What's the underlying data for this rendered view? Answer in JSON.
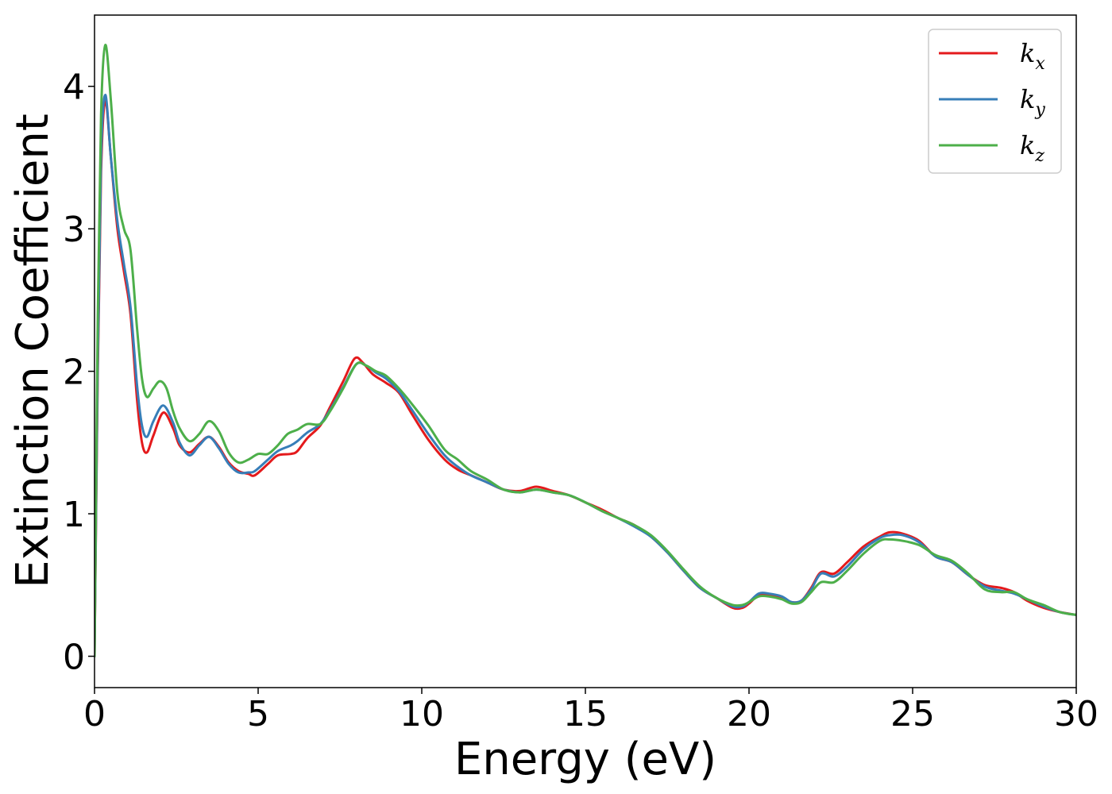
{
  "chart_data": {
    "type": "line",
    "title": "",
    "xlabel": "Energy (eV)",
    "ylabel": "Extinction Coefficient",
    "xlim": [
      0,
      30
    ],
    "ylim": [
      -0.22,
      4.5
    ],
    "xticks": [
      0,
      5,
      10,
      15,
      20,
      25,
      30
    ],
    "xtick_labels": [
      "0",
      "5",
      "10",
      "15",
      "20",
      "25",
      "30"
    ],
    "yticks": [
      0,
      1,
      2,
      3,
      4
    ],
    "ytick_labels": [
      "0",
      "1",
      "2",
      "3",
      "4"
    ],
    "grid": false,
    "legend": {
      "position": "top-right"
    },
    "series": [
      {
        "name": "k",
        "sub": "x",
        "color": "#e41a1c",
        "points": [
          [
            0,
            0
          ],
          [
            0.1,
            2.0
          ],
          [
            0.2,
            3.4
          ],
          [
            0.33,
            3.9
          ],
          [
            0.5,
            3.5
          ],
          [
            0.7,
            3.0
          ],
          [
            0.9,
            2.7
          ],
          [
            1.1,
            2.4
          ],
          [
            1.3,
            1.8
          ],
          [
            1.45,
            1.5
          ],
          [
            1.6,
            1.43
          ],
          [
            1.8,
            1.55
          ],
          [
            2.1,
            1.71
          ],
          [
            2.4,
            1.6
          ],
          [
            2.6,
            1.48
          ],
          [
            2.9,
            1.43
          ],
          [
            3.2,
            1.49
          ],
          [
            3.5,
            1.54
          ],
          [
            3.8,
            1.47
          ],
          [
            4.1,
            1.36
          ],
          [
            4.4,
            1.3
          ],
          [
            4.7,
            1.28
          ],
          [
            4.9,
            1.27
          ],
          [
            5.3,
            1.35
          ],
          [
            5.6,
            1.41
          ],
          [
            6.0,
            1.42
          ],
          [
            6.2,
            1.44
          ],
          [
            6.5,
            1.53
          ],
          [
            6.9,
            1.62
          ],
          [
            7.2,
            1.75
          ],
          [
            7.6,
            1.93
          ],
          [
            7.95,
            2.09
          ],
          [
            8.2,
            2.06
          ],
          [
            8.5,
            1.98
          ],
          [
            8.9,
            1.92
          ],
          [
            9.3,
            1.85
          ],
          [
            9.7,
            1.7
          ],
          [
            10.2,
            1.52
          ],
          [
            10.7,
            1.38
          ],
          [
            11.1,
            1.31
          ],
          [
            11.5,
            1.27
          ],
          [
            12.0,
            1.22
          ],
          [
            12.5,
            1.17
          ],
          [
            13.0,
            1.16
          ],
          [
            13.5,
            1.19
          ],
          [
            14.0,
            1.16
          ],
          [
            14.5,
            1.13
          ],
          [
            15.0,
            1.08
          ],
          [
            15.5,
            1.03
          ],
          [
            16.0,
            0.97
          ],
          [
            16.5,
            0.92
          ],
          [
            17.0,
            0.84
          ],
          [
            17.5,
            0.73
          ],
          [
            18.0,
            0.6
          ],
          [
            18.5,
            0.48
          ],
          [
            19.0,
            0.41
          ],
          [
            19.5,
            0.34
          ],
          [
            19.8,
            0.34
          ],
          [
            20.0,
            0.37
          ],
          [
            20.3,
            0.43
          ],
          [
            20.6,
            0.43
          ],
          [
            21.0,
            0.41
          ],
          [
            21.3,
            0.38
          ],
          [
            21.6,
            0.39
          ],
          [
            21.9,
            0.48
          ],
          [
            22.2,
            0.59
          ],
          [
            22.6,
            0.58
          ],
          [
            23.0,
            0.66
          ],
          [
            23.5,
            0.77
          ],
          [
            24.0,
            0.84
          ],
          [
            24.3,
            0.87
          ],
          [
            24.7,
            0.86
          ],
          [
            25.2,
            0.81
          ],
          [
            25.7,
            0.7
          ],
          [
            26.2,
            0.66
          ],
          [
            26.7,
            0.57
          ],
          [
            27.2,
            0.5
          ],
          [
            27.7,
            0.48
          ],
          [
            28.1,
            0.45
          ],
          [
            28.5,
            0.39
          ],
          [
            29.0,
            0.34
          ],
          [
            29.5,
            0.31
          ],
          [
            30.0,
            0.29
          ]
        ]
      },
      {
        "name": "k",
        "sub": "y",
        "color": "#377eb8",
        "points": [
          [
            0,
            0
          ],
          [
            0.1,
            2.1
          ],
          [
            0.2,
            3.5
          ],
          [
            0.33,
            3.94
          ],
          [
            0.5,
            3.5
          ],
          [
            0.7,
            3.05
          ],
          [
            0.9,
            2.75
          ],
          [
            1.1,
            2.45
          ],
          [
            1.3,
            1.9
          ],
          [
            1.45,
            1.62
          ],
          [
            1.6,
            1.54
          ],
          [
            1.8,
            1.65
          ],
          [
            2.1,
            1.76
          ],
          [
            2.4,
            1.64
          ],
          [
            2.6,
            1.5
          ],
          [
            2.9,
            1.41
          ],
          [
            3.2,
            1.48
          ],
          [
            3.5,
            1.54
          ],
          [
            3.8,
            1.46
          ],
          [
            4.1,
            1.35
          ],
          [
            4.4,
            1.29
          ],
          [
            4.7,
            1.29
          ],
          [
            4.9,
            1.3
          ],
          [
            5.3,
            1.38
          ],
          [
            5.6,
            1.44
          ],
          [
            6.0,
            1.48
          ],
          [
            6.2,
            1.51
          ],
          [
            6.5,
            1.57
          ],
          [
            6.9,
            1.63
          ],
          [
            7.2,
            1.73
          ],
          [
            7.6,
            1.89
          ],
          [
            8.0,
            2.05
          ],
          [
            8.3,
            2.04
          ],
          [
            8.6,
            1.99
          ],
          [
            8.9,
            1.95
          ],
          [
            9.3,
            1.86
          ],
          [
            9.7,
            1.73
          ],
          [
            10.2,
            1.56
          ],
          [
            10.7,
            1.41
          ],
          [
            11.1,
            1.33
          ],
          [
            11.5,
            1.27
          ],
          [
            12.0,
            1.22
          ],
          [
            12.5,
            1.17
          ],
          [
            13.0,
            1.15
          ],
          [
            13.5,
            1.17
          ],
          [
            14.0,
            1.15
          ],
          [
            14.5,
            1.13
          ],
          [
            15.0,
            1.08
          ],
          [
            15.5,
            1.02
          ],
          [
            16.0,
            0.97
          ],
          [
            16.5,
            0.91
          ],
          [
            17.0,
            0.84
          ],
          [
            17.5,
            0.73
          ],
          [
            18.0,
            0.6
          ],
          [
            18.5,
            0.48
          ],
          [
            19.0,
            0.41
          ],
          [
            19.5,
            0.35
          ],
          [
            19.8,
            0.35
          ],
          [
            20.0,
            0.38
          ],
          [
            20.3,
            0.44
          ],
          [
            20.6,
            0.44
          ],
          [
            21.0,
            0.42
          ],
          [
            21.3,
            0.38
          ],
          [
            21.6,
            0.39
          ],
          [
            21.9,
            0.47
          ],
          [
            22.2,
            0.58
          ],
          [
            22.6,
            0.56
          ],
          [
            23.0,
            0.63
          ],
          [
            23.5,
            0.75
          ],
          [
            24.0,
            0.83
          ],
          [
            24.3,
            0.85
          ],
          [
            24.7,
            0.85
          ],
          [
            25.2,
            0.8
          ],
          [
            25.7,
            0.7
          ],
          [
            26.2,
            0.66
          ],
          [
            26.7,
            0.57
          ],
          [
            27.2,
            0.49
          ],
          [
            27.7,
            0.46
          ],
          [
            28.1,
            0.44
          ],
          [
            28.5,
            0.4
          ],
          [
            29.0,
            0.35
          ],
          [
            29.5,
            0.31
          ],
          [
            30.0,
            0.29
          ]
        ]
      },
      {
        "name": "k",
        "sub": "z",
        "color": "#4daf4a",
        "points": [
          [
            0,
            0
          ],
          [
            0.1,
            2.4
          ],
          [
            0.2,
            3.8
          ],
          [
            0.33,
            4.29
          ],
          [
            0.5,
            3.9
          ],
          [
            0.7,
            3.25
          ],
          [
            0.9,
            3.0
          ],
          [
            1.1,
            2.85
          ],
          [
            1.3,
            2.3
          ],
          [
            1.45,
            1.95
          ],
          [
            1.6,
            1.82
          ],
          [
            1.8,
            1.88
          ],
          [
            2.0,
            1.93
          ],
          [
            2.2,
            1.88
          ],
          [
            2.4,
            1.72
          ],
          [
            2.6,
            1.6
          ],
          [
            2.9,
            1.51
          ],
          [
            3.2,
            1.56
          ],
          [
            3.5,
            1.65
          ],
          [
            3.8,
            1.58
          ],
          [
            4.1,
            1.43
          ],
          [
            4.4,
            1.36
          ],
          [
            4.7,
            1.38
          ],
          [
            5.0,
            1.42
          ],
          [
            5.3,
            1.42
          ],
          [
            5.6,
            1.48
          ],
          [
            5.9,
            1.56
          ],
          [
            6.2,
            1.59
          ],
          [
            6.5,
            1.63
          ],
          [
            6.9,
            1.63
          ],
          [
            7.2,
            1.72
          ],
          [
            7.6,
            1.88
          ],
          [
            8.0,
            2.05
          ],
          [
            8.3,
            2.04
          ],
          [
            8.6,
            2.0
          ],
          [
            8.9,
            1.97
          ],
          [
            9.3,
            1.88
          ],
          [
            9.7,
            1.77
          ],
          [
            10.2,
            1.62
          ],
          [
            10.7,
            1.45
          ],
          [
            11.1,
            1.38
          ],
          [
            11.5,
            1.3
          ],
          [
            12.0,
            1.24
          ],
          [
            12.5,
            1.17
          ],
          [
            13.0,
            1.15
          ],
          [
            13.5,
            1.17
          ],
          [
            14.0,
            1.15
          ],
          [
            14.5,
            1.13
          ],
          [
            15.0,
            1.08
          ],
          [
            15.5,
            1.02
          ],
          [
            16.0,
            0.97
          ],
          [
            16.5,
            0.92
          ],
          [
            17.0,
            0.85
          ],
          [
            17.5,
            0.74
          ],
          [
            18.0,
            0.61
          ],
          [
            18.5,
            0.49
          ],
          [
            19.0,
            0.41
          ],
          [
            19.5,
            0.36
          ],
          [
            19.8,
            0.36
          ],
          [
            20.0,
            0.38
          ],
          [
            20.3,
            0.42
          ],
          [
            20.6,
            0.42
          ],
          [
            21.0,
            0.4
          ],
          [
            21.3,
            0.37
          ],
          [
            21.6,
            0.38
          ],
          [
            21.9,
            0.45
          ],
          [
            22.2,
            0.52
          ],
          [
            22.6,
            0.52
          ],
          [
            23.0,
            0.6
          ],
          [
            23.5,
            0.72
          ],
          [
            24.0,
            0.81
          ],
          [
            24.3,
            0.82
          ],
          [
            24.7,
            0.81
          ],
          [
            25.2,
            0.78
          ],
          [
            25.7,
            0.71
          ],
          [
            26.2,
            0.67
          ],
          [
            26.7,
            0.58
          ],
          [
            27.2,
            0.47
          ],
          [
            27.7,
            0.45
          ],
          [
            28.1,
            0.45
          ],
          [
            28.5,
            0.4
          ],
          [
            29.0,
            0.36
          ],
          [
            29.5,
            0.31
          ],
          [
            30.0,
            0.29
          ]
        ]
      }
    ]
  }
}
